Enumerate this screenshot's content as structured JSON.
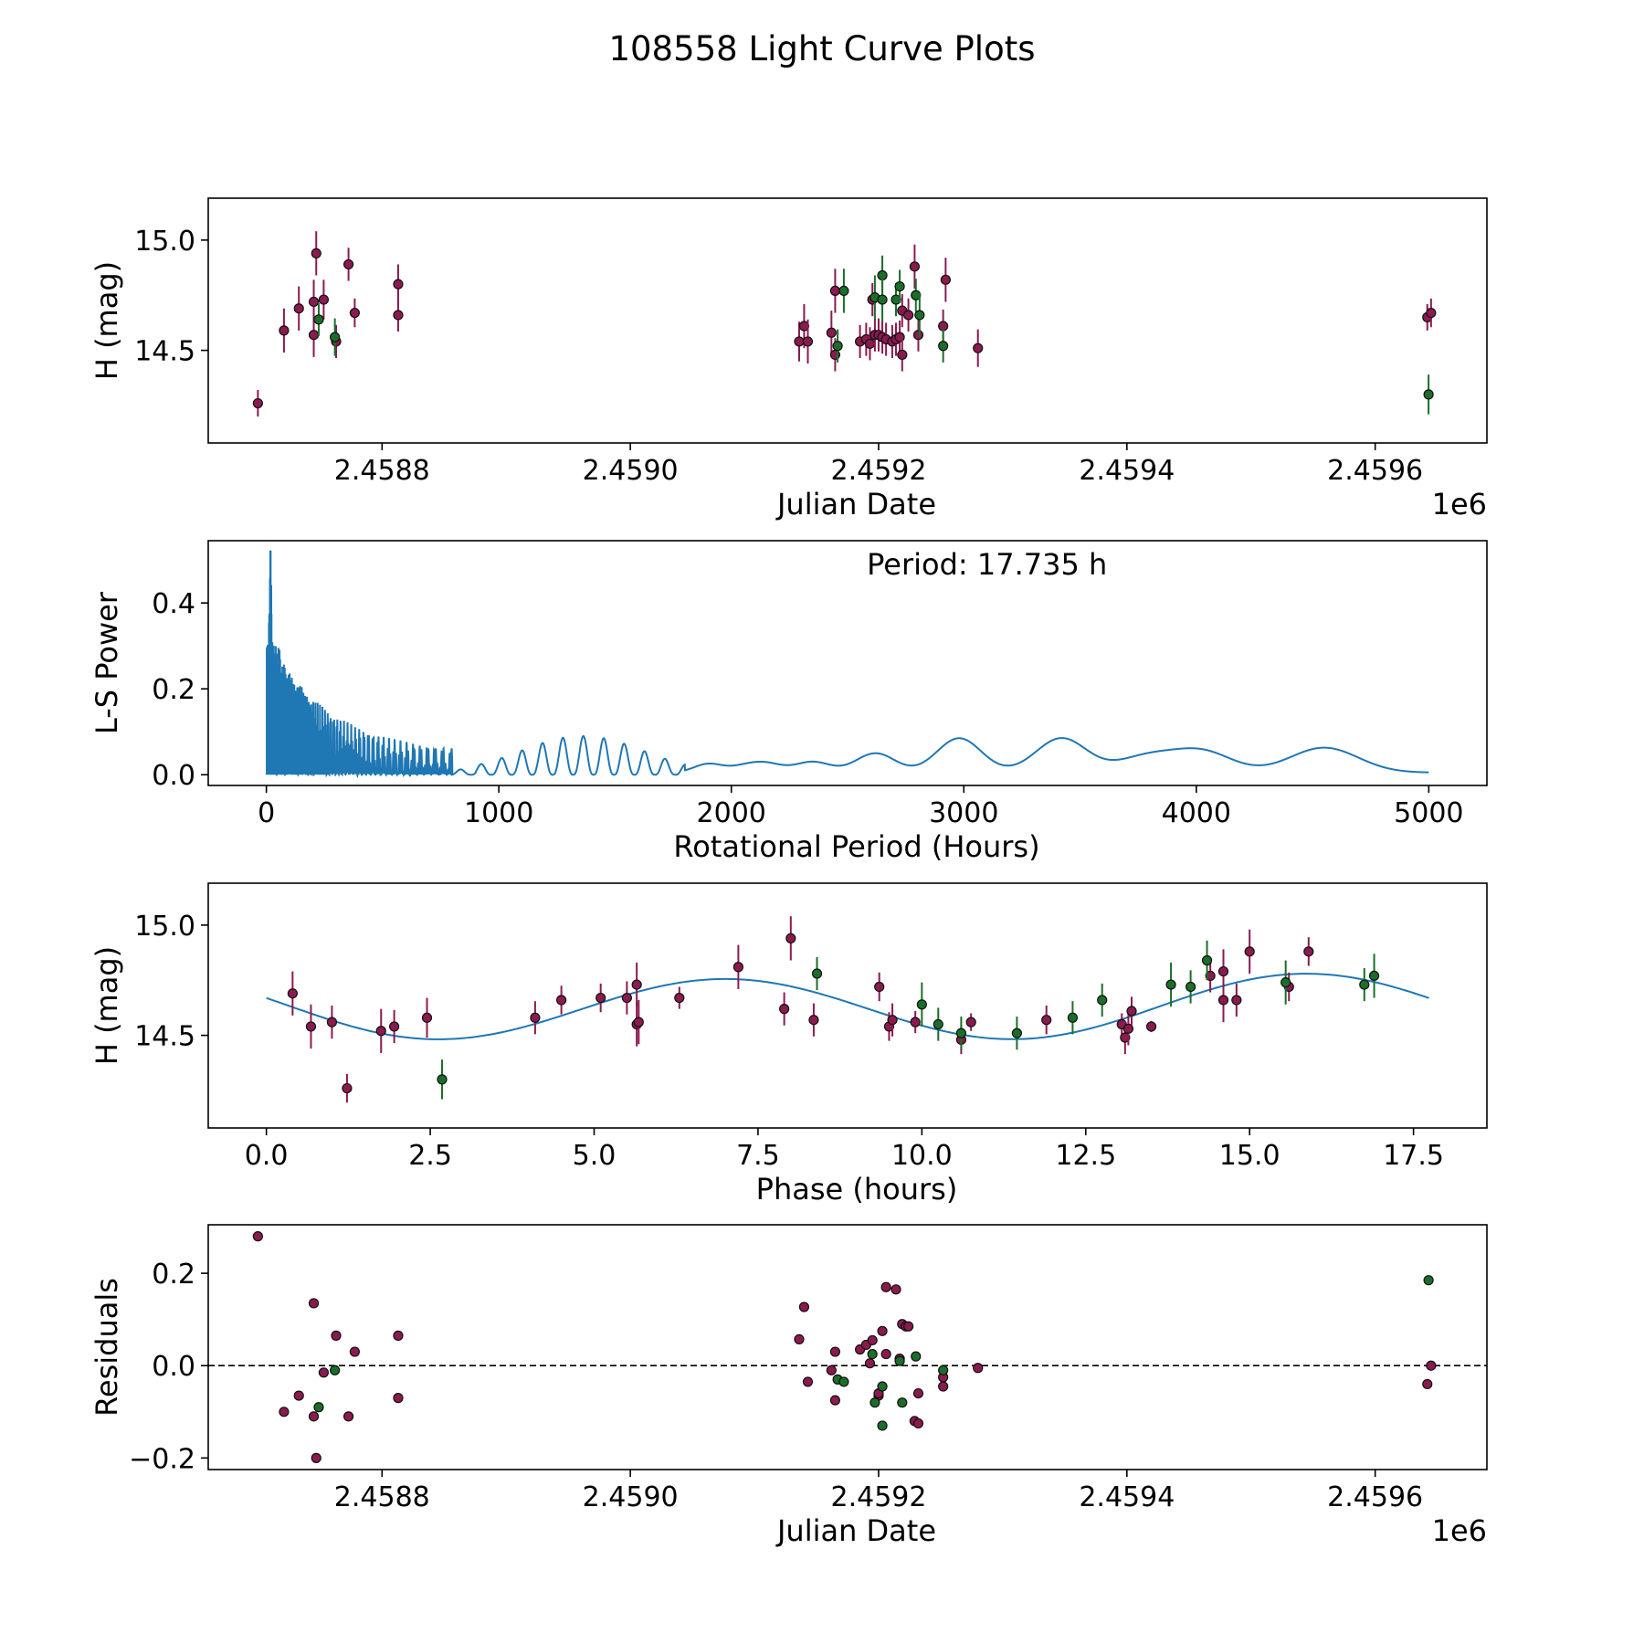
{
  "figure_title": "108558 Light Curve Plots",
  "colors": {
    "red": "#8b1a4f",
    "green": "#1b6e2a",
    "line": "#1f77b4",
    "frame": "#000000"
  },
  "chart_data": [
    {
      "type": "scatter",
      "id": "lightcurve",
      "xlabel": "Julian Date",
      "ylabel": "H (mag)",
      "x_multiplier_label": "1e6",
      "xlim": [
        2.45866,
        2.45969
      ],
      "ylim": [
        14.08,
        15.19
      ],
      "xticks": [
        2.4588,
        2.459,
        2.4592,
        2.4594,
        2.4596
      ],
      "xtick_labels": [
        "2.4588",
        "2.4590",
        "2.4592",
        "2.4594",
        "2.4596"
      ],
      "yticks": [
        14.5,
        15.0
      ],
      "ytick_labels": [
        "14.5",
        "15.0"
      ],
      "series": [
        {
          "name": "red",
          "color_key": "red",
          "points": [
            [
              2.4587,
              14.26,
              0.12
            ],
            [
              2.458721,
              14.59,
              0.2
            ],
            [
              2.458733,
              14.69,
              0.2
            ],
            [
              2.458745,
              14.72,
              0.2
            ],
            [
              2.458745,
              14.57,
              0.2
            ],
            [
              2.458747,
              14.94,
              0.2
            ],
            [
              2.458753,
              14.73,
              0.18
            ],
            [
              2.458763,
              14.54,
              0.15
            ],
            [
              2.458773,
              14.89,
              0.15
            ],
            [
              2.458778,
              14.67,
              0.13
            ],
            [
              2.458813,
              14.8,
              0.18
            ],
            [
              2.458813,
              14.66,
              0.15
            ],
            [
              2.459136,
              14.54,
              0.18
            ],
            [
              2.45914,
              14.61,
              0.2
            ],
            [
              2.459143,
              14.54,
              0.2
            ],
            [
              2.459162,
              14.58,
              0.2
            ],
            [
              2.459165,
              14.77,
              0.2
            ],
            [
              2.459165,
              14.48,
              0.15
            ],
            [
              2.459185,
              14.54,
              0.15
            ],
            [
              2.459195,
              14.73,
              0.15
            ],
            [
              2.45919,
              14.55,
              0.15
            ],
            [
              2.459193,
              14.53,
              0.15
            ],
            [
              2.459197,
              14.57,
              0.15
            ],
            [
              2.4592,
              14.57,
              0.15
            ],
            [
              2.459203,
              14.56,
              0.15
            ],
            [
              2.459206,
              14.55,
              0.15
            ],
            [
              2.459211,
              14.54,
              0.15
            ],
            [
              2.459214,
              14.55,
              0.15
            ],
            [
              2.459217,
              14.56,
              0.15
            ],
            [
              2.459219,
              14.48,
              0.15
            ],
            [
              2.459219,
              14.68,
              0.15
            ],
            [
              2.459224,
              14.66,
              0.15
            ],
            [
              2.459229,
              14.88,
              0.2
            ],
            [
              2.459232,
              14.57,
              0.15
            ],
            [
              2.459252,
              14.61,
              0.15
            ],
            [
              2.459254,
              14.82,
              0.2
            ],
            [
              2.45928,
              14.51,
              0.17
            ],
            [
              2.459642,
              14.65,
              0.12
            ],
            [
              2.459645,
              14.67,
              0.13
            ]
          ]
        },
        {
          "name": "green",
          "color_key": "green",
          "points": [
            [
              2.458749,
              14.64,
              0.15
            ],
            [
              2.458762,
              14.56,
              0.17
            ],
            [
              2.459167,
              14.52,
              0.15
            ],
            [
              2.459172,
              14.77,
              0.2
            ],
            [
              2.459197,
              14.74,
              0.2
            ],
            [
              2.459203,
              14.84,
              0.18
            ],
            [
              2.459203,
              14.73,
              0.2
            ],
            [
              2.459214,
              14.73,
              0.15
            ],
            [
              2.459217,
              14.79,
              0.15
            ],
            [
              2.45923,
              14.75,
              0.15
            ],
            [
              2.459233,
              14.66,
              0.2
            ],
            [
              2.459252,
              14.52,
              0.15
            ],
            [
              2.459643,
              14.3,
              0.18
            ]
          ]
        }
      ]
    },
    {
      "type": "line",
      "id": "periodogram",
      "xlabel": "Rotational Period (Hours)",
      "ylabel": "L-S Power",
      "annotation": "Period: 17.735 h",
      "xlim": [
        -250,
        5250
      ],
      "ylim": [
        -0.025,
        0.545
      ],
      "xticks": [
        0,
        1000,
        2000,
        3000,
        4000,
        5000
      ],
      "xtick_labels": [
        "0",
        "1000",
        "2000",
        "3000",
        "4000",
        "5000"
      ],
      "yticks": [
        0.0,
        0.2,
        0.4
      ],
      "ytick_labels": [
        "0.0",
        "0.2",
        "0.4"
      ],
      "x_range": [
        1.5,
        5000
      ],
      "peak": [
        17.735,
        0.52
      ],
      "color_key": "line"
    },
    {
      "type": "scatter",
      "id": "phased",
      "xlabel": "Phase (hours)",
      "ylabel": "H (mag)",
      "xlim": [
        -0.887,
        18.62
      ],
      "ylim": [
        14.08,
        15.19
      ],
      "xticks": [
        0.0,
        2.5,
        5.0,
        7.5,
        10.0,
        12.5,
        15.0,
        17.5
      ],
      "xtick_labels": [
        "0.0",
        "2.5",
        "5.0",
        "7.5",
        "10.0",
        "12.5",
        "15.0",
        "17.5"
      ],
      "yticks": [
        14.5,
        15.0
      ],
      "ytick_labels": [
        "14.5",
        "15.0"
      ],
      "model": {
        "mean": 14.625,
        "amp": 0.15,
        "period": 17.735,
        "harmonics": 2,
        "phase_peak": 7.0,
        "phase_peak2": 15.8
      },
      "series": [
        {
          "name": "red",
          "color_key": "red",
          "points": [
            [
              0.4,
              14.69,
              0.2
            ],
            [
              0.68,
              14.54,
              0.2
            ],
            [
              1.0,
              14.56,
              0.15
            ],
            [
              1.23,
              14.26,
              0.13
            ],
            [
              1.75,
              14.52,
              0.2
            ],
            [
              1.95,
              14.54,
              0.15
            ],
            [
              2.45,
              14.58,
              0.18
            ],
            [
              4.1,
              14.58,
              0.15
            ],
            [
              4.5,
              14.66,
              0.13
            ],
            [
              5.1,
              14.67,
              0.13
            ],
            [
              5.5,
              14.67,
              0.15
            ],
            [
              5.65,
              14.73,
              0.2
            ],
            [
              5.65,
              14.55,
              0.2
            ],
            [
              5.68,
              14.56,
              0.2
            ],
            [
              6.3,
              14.67,
              0.1
            ],
            [
              7.2,
              14.81,
              0.2
            ],
            [
              7.9,
              14.62,
              0.15
            ],
            [
              8.0,
              14.94,
              0.2
            ],
            [
              8.35,
              14.57,
              0.15
            ],
            [
              9.35,
              14.72,
              0.13
            ],
            [
              9.5,
              14.54,
              0.13
            ],
            [
              9.55,
              14.57,
              0.15
            ],
            [
              9.9,
              14.56,
              0.1
            ],
            [
              10.6,
              14.48,
              0.13
            ],
            [
              10.75,
              14.56,
              0.08
            ],
            [
              11.9,
              14.57,
              0.13
            ],
            [
              13.05,
              14.55,
              0.1
            ],
            [
              13.1,
              14.49,
              0.15
            ],
            [
              13.15,
              14.53,
              0.15
            ],
            [
              13.2,
              14.61,
              0.13
            ],
            [
              13.5,
              14.54,
              0.05
            ],
            [
              14.4,
              14.77,
              0.15
            ],
            [
              14.6,
              14.79,
              0.2
            ],
            [
              14.6,
              14.66,
              0.2
            ],
            [
              14.8,
              14.66,
              0.15
            ],
            [
              15.0,
              14.88,
              0.2
            ],
            [
              15.6,
              14.72,
              0.13
            ],
            [
              15.9,
              14.88,
              0.13
            ]
          ]
        },
        {
          "name": "green",
          "color_key": "green",
          "points": [
            [
              2.68,
              14.3,
              0.18
            ],
            [
              8.4,
              14.78,
              0.15
            ],
            [
              10.0,
              14.64,
              0.2
            ],
            [
              10.25,
              14.55,
              0.15
            ],
            [
              10.6,
              14.51,
              0.15
            ],
            [
              11.45,
              14.51,
              0.15
            ],
            [
              12.3,
              14.58,
              0.15
            ],
            [
              12.75,
              14.66,
              0.15
            ],
            [
              13.8,
              14.73,
              0.2
            ],
            [
              14.1,
              14.72,
              0.15
            ],
            [
              14.35,
              14.84,
              0.18
            ],
            [
              15.55,
              14.74,
              0.2
            ],
            [
              16.75,
              14.73,
              0.15
            ],
            [
              16.9,
              14.77,
              0.2
            ]
          ]
        }
      ]
    },
    {
      "type": "scatter",
      "id": "residuals",
      "xlabel": "Julian Date",
      "ylabel": "Residuals",
      "x_multiplier_label": "1e6",
      "xlim": [
        2.45866,
        2.45969
      ],
      "ylim": [
        -0.225,
        0.305
      ],
      "xticks": [
        2.4588,
        2.459,
        2.4592,
        2.4594,
        2.4596
      ],
      "xtick_labels": [
        "2.4588",
        "2.4590",
        "2.4592",
        "2.4594",
        "2.4596"
      ],
      "yticks": [
        -0.2,
        0.0,
        0.2
      ],
      "ytick_labels": [
        "−0.2",
        "0.0",
        "0.2"
      ],
      "zero_line": true,
      "series": [
        {
          "name": "red",
          "color_key": "red",
          "points": [
            [
              2.4587,
              0.28
            ],
            [
              2.458721,
              -0.1
            ],
            [
              2.458733,
              -0.065
            ],
            [
              2.458745,
              0.135
            ],
            [
              2.458745,
              -0.11
            ],
            [
              2.458747,
              -0.2
            ],
            [
              2.458753,
              -0.015
            ],
            [
              2.458763,
              0.065
            ],
            [
              2.458773,
              -0.11
            ],
            [
              2.458778,
              0.03
            ],
            [
              2.458813,
              0.065
            ],
            [
              2.458813,
              -0.07
            ],
            [
              2.459136,
              0.057
            ],
            [
              2.45914,
              0.127
            ],
            [
              2.459143,
              -0.035
            ],
            [
              2.459162,
              -0.01
            ],
            [
              2.459165,
              -0.075
            ],
            [
              2.459165,
              0.03
            ],
            [
              2.459185,
              0.035
            ],
            [
              2.45919,
              0.045
            ],
            [
              2.459193,
              0.005
            ],
            [
              2.459195,
              0.055
            ],
            [
              2.4592,
              -0.065
            ],
            [
              2.4592,
              -0.06
            ],
            [
              2.459203,
              0.075
            ],
            [
              2.459206,
              0.17
            ],
            [
              2.459206,
              0.025
            ],
            [
              2.459214,
              0.165
            ],
            [
              2.459217,
              0.015
            ],
            [
              2.459219,
              0.09
            ],
            [
              2.459222,
              0.085
            ],
            [
              2.459224,
              0.085
            ],
            [
              2.459229,
              -0.12
            ],
            [
              2.459232,
              -0.06
            ],
            [
              2.459232,
              -0.125
            ],
            [
              2.459252,
              -0.025
            ],
            [
              2.459252,
              -0.045
            ],
            [
              2.45928,
              -0.005
            ],
            [
              2.459642,
              -0.04
            ],
            [
              2.459645,
              0.0
            ]
          ]
        },
        {
          "name": "green",
          "color_key": "green",
          "points": [
            [
              2.458749,
              -0.09
            ],
            [
              2.458762,
              -0.01
            ],
            [
              2.459167,
              -0.03
            ],
            [
              2.459172,
              -0.035
            ],
            [
              2.459195,
              0.025
            ],
            [
              2.459197,
              -0.08
            ],
            [
              2.459203,
              -0.045
            ],
            [
              2.459203,
              -0.13
            ],
            [
              2.459217,
              0.01
            ],
            [
              2.459219,
              -0.08
            ],
            [
              2.45923,
              0.02
            ],
            [
              2.459252,
              -0.01
            ],
            [
              2.459643,
              0.185
            ]
          ]
        }
      ]
    }
  ]
}
